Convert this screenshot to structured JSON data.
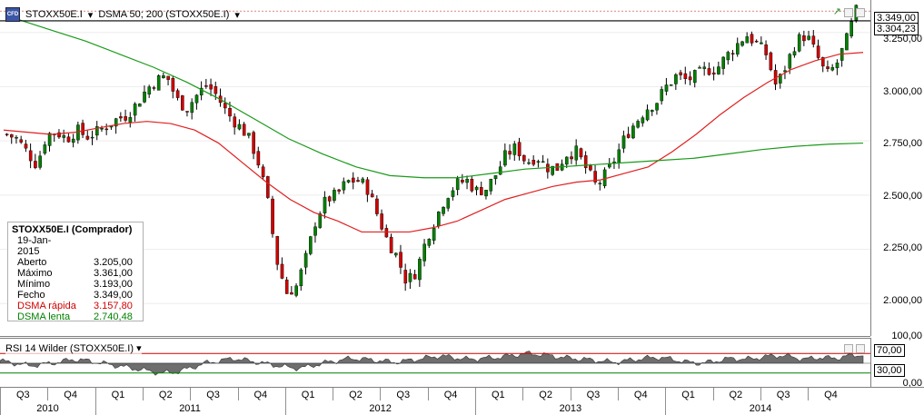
{
  "header": {
    "symbol": "STOXX50E.I",
    "indicator": "DSMA 50; 200 (STOXX50E.I)",
    "logo_text": "CFD"
  },
  "legend": {
    "title": "STOXX50E.I (Comprador)",
    "date": "19-Jan-2015",
    "rows": [
      {
        "label": "Aberto",
        "value": "3.205,00"
      },
      {
        "label": "Máximo",
        "value": "3.361,00"
      },
      {
        "label": "Mínimo",
        "value": "3.193,00"
      },
      {
        "label": "Fecho",
        "value": "3.349,00"
      },
      {
        "label": "DSMA rápida",
        "value": "3.157,80"
      },
      {
        "label": "DSMA lenta",
        "value": "2.740,48"
      }
    ]
  },
  "price_axis": {
    "ticks": [
      "3.250,00",
      "3.000,00",
      "2.750,00",
      "2.500,00",
      "2.250,00",
      "2.000,00"
    ],
    "tick_values": [
      3250,
      3000,
      2750,
      2500,
      2250,
      2000
    ],
    "last_price": "3.349,00",
    "cursor_price": "3.304,23"
  },
  "rsi": {
    "title": "RSI 14 Wilder (STOXX50E.I)",
    "ticks": [
      "100,00",
      "70,00",
      "30,00",
      "0,00"
    ],
    "tick_values": [
      100,
      70,
      30,
      0
    ],
    "levels": [
      70,
      30
    ]
  },
  "time_axis": {
    "quarters": [
      "Q3",
      "Q4",
      "Q1",
      "Q2",
      "Q3",
      "Q4",
      "Q1",
      "Q2",
      "Q3",
      "Q4",
      "Q1",
      "Q2",
      "Q3",
      "Q4",
      "Q1",
      "Q2",
      "Q3",
      "Q4"
    ],
    "years": [
      "2010",
      "2011",
      "2012",
      "2013",
      "2014"
    ]
  },
  "colors": {
    "up": "#008000",
    "down": "#d00000",
    "fast_ma": "#e02020",
    "slow_ma": "#1a9a1a",
    "rsi_fill": "#6e6e6e"
  },
  "chart_data": {
    "type": "candlestick",
    "title": "STOXX50E.I",
    "ylim": [
      1850,
      3400
    ],
    "close_series_approx": [
      2780,
      2760,
      2700,
      2640,
      2780,
      2790,
      2760,
      2800,
      2770,
      2790,
      2820,
      2850,
      2870,
      2920,
      2990,
      3030,
      3050,
      2940,
      2900,
      2960,
      3010,
      2960,
      2880,
      2830,
      2780,
      2680,
      2500,
      2200,
      2050,
      2080,
      2220,
      2400,
      2480,
      2500,
      2560,
      2570,
      2540,
      2420,
      2300,
      2220,
      2100,
      2150,
      2300,
      2400,
      2500,
      2550,
      2570,
      2520,
      2530,
      2600,
      2690,
      2720,
      2650,
      2680,
      2630,
      2620,
      2690,
      2700,
      2620,
      2540,
      2600,
      2680,
      2780,
      2840,
      2900,
      2930,
      3000,
      3050,
      3030,
      3050,
      3080,
      3080,
      3140,
      3190,
      3240,
      3200,
      3150,
      3000,
      3100,
      3210,
      3240,
      3150,
      3050,
      3100,
      3210,
      3349
    ],
    "fast_ma_approx": [
      2800,
      2790,
      2780,
      2790,
      2810,
      2830,
      2840,
      2830,
      2800,
      2740,
      2650,
      2560,
      2480,
      2420,
      2380,
      2330,
      2330,
      2330,
      2350,
      2380,
      2430,
      2480,
      2510,
      2540,
      2560,
      2570,
      2600,
      2630,
      2700,
      2780,
      2870,
      2950,
      3020,
      3080,
      3120,
      3150,
      3158
    ],
    "slow_ma_approx": [
      3310,
      3260,
      3210,
      3150,
      3090,
      3020,
      2940,
      2850,
      2760,
      2690,
      2630,
      2590,
      2580,
      2580,
      2600,
      2620,
      2630,
      2640,
      2650,
      2660,
      2670,
      2690,
      2710,
      2725,
      2735,
      2740
    ],
    "rsi_approx": [
      55,
      50,
      45,
      48,
      52,
      58,
      55,
      50,
      45,
      40,
      35,
      30,
      32,
      40,
      50,
      55,
      60,
      55,
      50,
      45,
      40,
      42,
      50,
      55,
      60,
      58,
      55,
      52,
      56,
      60,
      65,
      62,
      58,
      60,
      62,
      66,
      70,
      68,
      64,
      60,
      58,
      55,
      52,
      56,
      60,
      62,
      58,
      52,
      50,
      55,
      60,
      58,
      62,
      66,
      64,
      58,
      62,
      60,
      65,
      68
    ]
  }
}
